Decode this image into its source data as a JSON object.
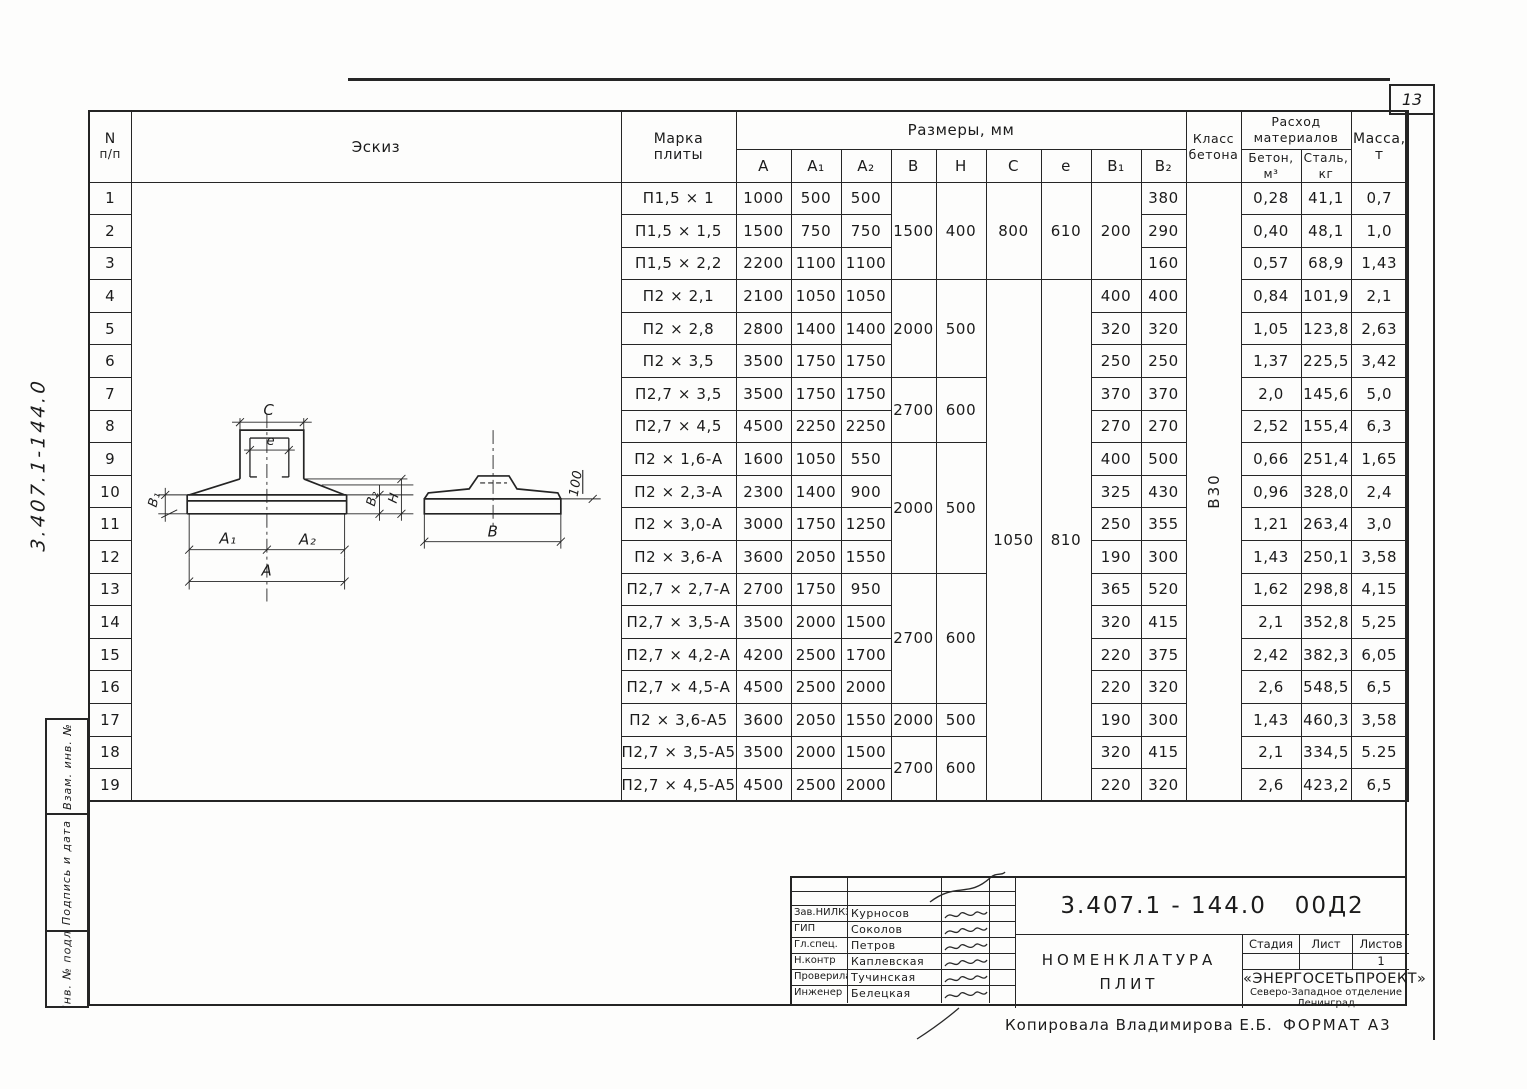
{
  "page": {
    "number": "13",
    "vertical_doc_number": "3.407.1-144.0",
    "copied_by": "Копировала  Владимирова Е.Б.",
    "format_note": "ФОРМАТ А3"
  },
  "frame": {
    "stamp_vzam": "Взам. инв. №",
    "stamp_sign": "Подпись и дата",
    "stamp_inv": "Инв. № подл."
  },
  "table": {
    "headers": {
      "num_line1": "N",
      "num_line2": "п/п",
      "sketch": "Эскиз",
      "mark_line1": "Марка",
      "mark_line2": "плиты",
      "sizes": "Размеры,  мм",
      "dims": [
        "А",
        "А₁",
        "А₂",
        "В",
        "Н",
        "С",
        "е",
        "В₁",
        "В₂"
      ],
      "class_line1": "Класс",
      "class_line2": "бетона",
      "consumption_line1": "Расход",
      "consumption_line2": "материалов",
      "concrete_line1": "Бетон,",
      "concrete_line2": "м³",
      "steel_line1": "Сталь,",
      "steel_line2": "кг",
      "mass_line1": "Масса,",
      "mass_line2": "т"
    },
    "concrete_class_value": "В30",
    "b1_group": {
      "start": 1,
      "span": 3,
      "value": "200"
    },
    "b_groups": [
      {
        "start": 1,
        "span": 3,
        "b": "1500",
        "h": "400"
      },
      {
        "start": 4,
        "span": 3,
        "b": "2000",
        "h": "500"
      },
      {
        "start": 7,
        "span": 2,
        "b": "2700",
        "h": "600"
      },
      {
        "start": 9,
        "span": 4,
        "b": "2000",
        "h": "500"
      },
      {
        "start": 13,
        "span": 4,
        "b": "2700",
        "h": "600"
      },
      {
        "start": 17,
        "span": 1,
        "b": "2000",
        "h": "500"
      },
      {
        "start": 18,
        "span": 2,
        "b": "2700",
        "h": "600"
      }
    ],
    "ce_groups": [
      {
        "start": 1,
        "span": 3,
        "c": "800",
        "e": "610"
      },
      {
        "start": 4,
        "span": 16,
        "c": "1050",
        "e": "810",
        "text_near_top": true
      }
    ],
    "rows": [
      {
        "n": "1",
        "mark": "П1,5 × 1",
        "a": "1000",
        "a1": "500",
        "a2": "500",
        "b1": null,
        "b2": "380",
        "beton": "0,28",
        "steel": "41,1",
        "mass": "0,7"
      },
      {
        "n": "2",
        "mark": "П1,5 × 1,5",
        "a": "1500",
        "a1": "750",
        "a2": "750",
        "b1": null,
        "b2": "290",
        "beton": "0,40",
        "steel": "48,1",
        "mass": "1,0"
      },
      {
        "n": "3",
        "mark": "П1,5 × 2,2",
        "a": "2200",
        "a1": "1100",
        "a2": "1100",
        "b1": null,
        "b2": "160",
        "beton": "0,57",
        "steel": "68,9",
        "mass": "1,43"
      },
      {
        "n": "4",
        "mark": "П2 × 2,1",
        "a": "2100",
        "a1": "1050",
        "a2": "1050",
        "b1": "400",
        "b2": "400",
        "beton": "0,84",
        "steel": "101,9",
        "mass": "2,1"
      },
      {
        "n": "5",
        "mark": "П2 × 2,8",
        "a": "2800",
        "a1": "1400",
        "a2": "1400",
        "b1": "320",
        "b2": "320",
        "beton": "1,05",
        "steel": "123,8",
        "mass": "2,63"
      },
      {
        "n": "6",
        "mark": "П2 × 3,5",
        "a": "3500",
        "a1": "1750",
        "a2": "1750",
        "b1": "250",
        "b2": "250",
        "beton": "1,37",
        "steel": "225,5",
        "mass": "3,42"
      },
      {
        "n": "7",
        "mark": "П2,7 × 3,5",
        "a": "3500",
        "a1": "1750",
        "a2": "1750",
        "b1": "370",
        "b2": "370",
        "beton": "2,0",
        "steel": "145,6",
        "mass": "5,0"
      },
      {
        "n": "8",
        "mark": "П2,7 × 4,5",
        "a": "4500",
        "a1": "2250",
        "a2": "2250",
        "b1": "270",
        "b2": "270",
        "beton": "2,52",
        "steel": "155,4",
        "mass": "6,3"
      },
      {
        "n": "9",
        "mark": "П2 × 1,6-А",
        "a": "1600",
        "a1": "1050",
        "a2": "550",
        "b1": "400",
        "b2": "500",
        "beton": "0,66",
        "steel": "251,4",
        "mass": "1,65"
      },
      {
        "n": "10",
        "mark": "П2 × 2,3-А",
        "a": "2300",
        "a1": "1400",
        "a2": "900",
        "b1": "325",
        "b2": "430",
        "beton": "0,96",
        "steel": "328,0",
        "mass": "2,4"
      },
      {
        "n": "11",
        "mark": "П2 × 3,0-А",
        "a": "3000",
        "a1": "1750",
        "a2": "1250",
        "b1": "250",
        "b2": "355",
        "beton": "1,21",
        "steel": "263,4",
        "mass": "3,0"
      },
      {
        "n": "12",
        "mark": "П2 × 3,6-А",
        "a": "3600",
        "a1": "2050",
        "a2": "1550",
        "b1": "190",
        "b2": "300",
        "beton": "1,43",
        "steel": "250,1",
        "mass": "3,58"
      },
      {
        "n": "13",
        "mark": "П2,7 × 2,7-А",
        "a": "2700",
        "a1": "1750",
        "a2": "950",
        "b1": "365",
        "b2": "520",
        "beton": "1,62",
        "steel": "298,8",
        "mass": "4,15"
      },
      {
        "n": "14",
        "mark": "П2,7 × 3,5-А",
        "a": "3500",
        "a1": "2000",
        "a2": "1500",
        "b1": "320",
        "b2": "415",
        "beton": "2,1",
        "steel": "352,8",
        "mass": "5,25"
      },
      {
        "n": "15",
        "mark": "П2,7 × 4,2-А",
        "a": "4200",
        "a1": "2500",
        "a2": "1700",
        "b1": "220",
        "b2": "375",
        "beton": "2,42",
        "steel": "382,3",
        "mass": "6,05"
      },
      {
        "n": "16",
        "mark": "П2,7 × 4,5-А",
        "a": "4500",
        "a1": "2500",
        "a2": "2000",
        "b1": "220",
        "b2": "320",
        "beton": "2,6",
        "steel": "548,5",
        "mass": "6,5"
      },
      {
        "n": "17",
        "mark": "П2 × 3,6-А5",
        "a": "3600",
        "a1": "2050",
        "a2": "1550",
        "b1": "190",
        "b2": "300",
        "beton": "1,43",
        "steel": "460,3",
        "mass": "3,58"
      },
      {
        "n": "18",
        "mark": "П2,7 × 3,5-А5",
        "a": "3500",
        "a1": "2000",
        "a2": "1500",
        "b1": "320",
        "b2": "415",
        "beton": "2,1",
        "steel": "334,5",
        "mass": "5.25"
      },
      {
        "n": "19",
        "mark": "П2,7 × 4,5-А5",
        "a": "4500",
        "a1": "2500",
        "a2": "2000",
        "b1": "220",
        "b2": "320",
        "beton": "2,6",
        "steel": "423,2",
        "mass": "6,5"
      }
    ]
  },
  "sketch": {
    "labels": {
      "c": "С",
      "e": "е",
      "b1": "В₁",
      "b2": "В₂",
      "h": "Н",
      "a1": "А₁",
      "a2": "А₂",
      "a": "А",
      "b": "В",
      "edge": "100"
    }
  },
  "title_block": {
    "doc_number": "3.407.1 - 144.0   00Д2",
    "title_line1": "НОМЕНКЛАТУРА",
    "title_line2": "ПЛИТ",
    "signers": [
      {
        "role": "Зав.НИЛКЭ",
        "name": "Курносов"
      },
      {
        "role": "ГИП",
        "name": "Соколов"
      },
      {
        "role": "Гл.спец.",
        "name": "Петров"
      },
      {
        "role": "Н.контр",
        "name": "Каплевская"
      },
      {
        "role": "Проверила",
        "name": "Тучинская"
      },
      {
        "role": "Инженер",
        "name": "Белецкая"
      }
    ],
    "stage_label": "Стадия",
    "sheet_label": "Лист",
    "sheets_label": "Листов",
    "sheets_value": "1",
    "org_line1": "«ЭНЕРГОСЕТЬПРОЕКТ»",
    "org_line2": "Северо-Западное отделение",
    "org_line3": "Ленинград"
  }
}
